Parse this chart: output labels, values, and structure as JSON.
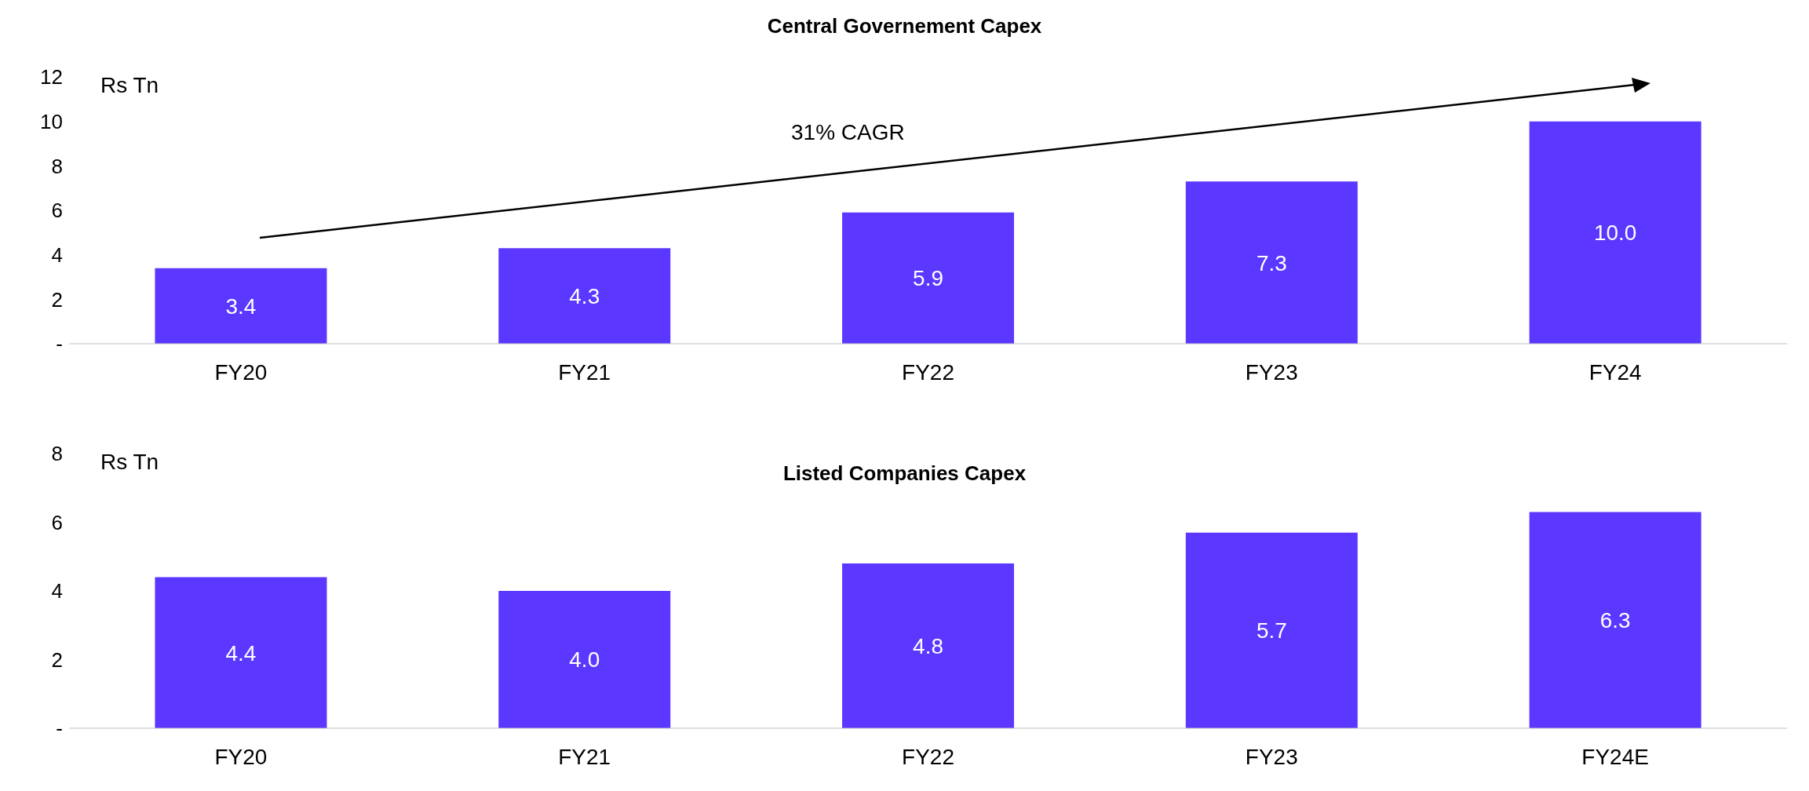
{
  "chart_data": [
    {
      "type": "bar",
      "title": "Central Governement Capex",
      "ylabel": "Rs Tn",
      "annotations": [
        "31% CAGR"
      ],
      "categories": [
        "FY20",
        "FY21",
        "FY22",
        "FY23",
        "FY24"
      ],
      "values": [
        3.4,
        4.3,
        5.9,
        7.3,
        10.0
      ],
      "color": "#5b37ff",
      "ylim": [
        0,
        12
      ],
      "yticks": [
        {
          "value": 0,
          "label": "-"
        },
        2,
        4,
        6,
        8,
        10,
        12
      ],
      "value_labels": [
        "3.4",
        "4.3",
        "5.9",
        "7.3",
        "10.0"
      ]
    },
    {
      "type": "bar",
      "title": "Listed Companies Capex",
      "ylabel": "Rs Tn",
      "categories": [
        "FY20",
        "FY21",
        "FY22",
        "FY23",
        "FY24E"
      ],
      "values": [
        4.4,
        4.0,
        4.8,
        5.7,
        6.3
      ],
      "color": "#5b37ff",
      "ylim": [
        0,
        8
      ],
      "yticks": [
        {
          "value": 0,
          "label": "-"
        },
        2,
        4,
        6,
        8
      ],
      "value_labels": [
        "4.4",
        "4.0",
        "4.8",
        "5.7",
        "6.3"
      ]
    }
  ]
}
